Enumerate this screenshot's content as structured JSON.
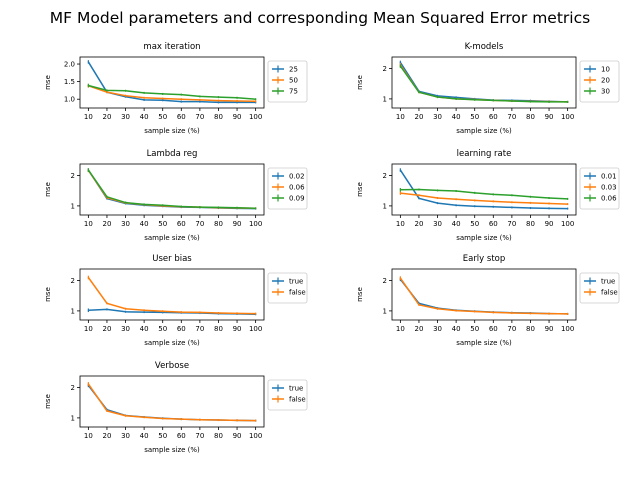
{
  "suptitle": "MF Model parameters and corresponding Mean Squared Error metrics",
  "chart_data": [
    {
      "type": "line",
      "title": "max iteration",
      "xlabel": "sample size (%)",
      "ylabel": "mse",
      "x": [
        10,
        20,
        30,
        40,
        50,
        60,
        70,
        80,
        90,
        100
      ],
      "xticks": [
        "10",
        "20",
        "30",
        "40",
        "50",
        "60",
        "70",
        "80",
        "90",
        "100"
      ],
      "yticks": [
        1.0,
        1.5,
        2.0
      ],
      "ytick_labels": [
        "1.0",
        "1.5",
        "2.0"
      ],
      "ylim": [
        0.75,
        2.2
      ],
      "legend_loc": "outside-right",
      "series": [
        {
          "name": "25",
          "color": "#1f77b4",
          "values": [
            2.06,
            1.2,
            1.07,
            0.98,
            0.97,
            0.93,
            0.93,
            0.91,
            0.91,
            0.91
          ]
        },
        {
          "name": "50",
          "color": "#ff7f0e",
          "values": [
            1.38,
            1.2,
            1.1,
            1.04,
            1.02,
            1.0,
            0.98,
            0.96,
            0.95,
            0.94
          ]
        },
        {
          "name": "75",
          "color": "#2ca02c",
          "values": [
            1.39,
            1.25,
            1.24,
            1.18,
            1.15,
            1.13,
            1.08,
            1.06,
            1.04,
            1.0
          ]
        }
      ]
    },
    {
      "type": "line",
      "title": "K-models",
      "xlabel": "sample size (%)",
      "ylabel": "mse",
      "x": [
        10,
        20,
        30,
        40,
        50,
        60,
        70,
        80,
        90,
        100
      ],
      "xticks": [
        "10",
        "20",
        "30",
        "40",
        "50",
        "60",
        "70",
        "80",
        "90",
        "100"
      ],
      "yticks": [
        1,
        2
      ],
      "ytick_labels": [
        "1",
        "2"
      ],
      "ylim": [
        0.7,
        2.38
      ],
      "legend_loc": "outside-right",
      "series": [
        {
          "name": "10",
          "color": "#1f77b4",
          "values": [
            2.2,
            1.25,
            1.1,
            1.05,
            1.0,
            0.96,
            0.95,
            0.94,
            0.92,
            0.9
          ]
        },
        {
          "name": "20",
          "color": "#ff7f0e",
          "values": [
            2.12,
            1.22,
            1.06,
            1.0,
            0.98,
            0.95,
            0.93,
            0.92,
            0.91,
            0.9
          ]
        },
        {
          "name": "30",
          "color": "#2ca02c",
          "values": [
            2.08,
            1.22,
            1.06,
            1.0,
            0.97,
            0.95,
            0.93,
            0.91,
            0.9,
            0.9
          ]
        }
      ]
    },
    {
      "type": "line",
      "title": "Lambda reg",
      "xlabel": "sample size (%)",
      "ylabel": "mse",
      "x": [
        10,
        20,
        30,
        40,
        50,
        60,
        70,
        80,
        90,
        100
      ],
      "xticks": [
        "10",
        "20",
        "30",
        "40",
        "50",
        "60",
        "70",
        "80",
        "90",
        "100"
      ],
      "yticks": [
        1,
        2
      ],
      "ytick_labels": [
        "1",
        "2"
      ],
      "ylim": [
        0.7,
        2.38
      ],
      "legend_loc": "outside-right",
      "series": [
        {
          "name": "0.02",
          "color": "#1f77b4",
          "values": [
            2.18,
            1.24,
            1.08,
            1.02,
            0.99,
            0.96,
            0.95,
            0.93,
            0.92,
            0.91
          ]
        },
        {
          "name": "0.06",
          "color": "#ff7f0e",
          "values": [
            2.17,
            1.27,
            1.1,
            1.04,
            1.0,
            0.97,
            0.96,
            0.94,
            0.93,
            0.92
          ]
        },
        {
          "name": "0.09",
          "color": "#2ca02c",
          "values": [
            2.18,
            1.3,
            1.11,
            1.05,
            1.02,
            0.98,
            0.96,
            0.95,
            0.94,
            0.92
          ]
        }
      ]
    },
    {
      "type": "line",
      "title": "learning rate",
      "xlabel": "sample size (%)",
      "ylabel": "mse",
      "x": [
        10,
        20,
        30,
        40,
        50,
        60,
        70,
        80,
        90,
        100
      ],
      "xticks": [
        "10",
        "20",
        "30",
        "40",
        "50",
        "60",
        "70",
        "80",
        "90",
        "100"
      ],
      "yticks": [
        1,
        2
      ],
      "ytick_labels": [
        "1",
        "2"
      ],
      "ylim": [
        0.7,
        2.38
      ],
      "legend_loc": "outside-right",
      "series": [
        {
          "name": "0.01",
          "color": "#1f77b4",
          "values": [
            2.18,
            1.25,
            1.09,
            1.02,
            0.99,
            0.97,
            0.95,
            0.93,
            0.92,
            0.91
          ]
        },
        {
          "name": "0.03",
          "color": "#ff7f0e",
          "values": [
            1.42,
            1.35,
            1.26,
            1.22,
            1.18,
            1.15,
            1.12,
            1.1,
            1.08,
            1.06
          ]
        },
        {
          "name": "0.06",
          "color": "#2ca02c",
          "values": [
            1.53,
            1.54,
            1.51,
            1.49,
            1.43,
            1.38,
            1.35,
            1.3,
            1.26,
            1.23
          ]
        }
      ]
    },
    {
      "type": "line",
      "title": "User bias",
      "xlabel": "sample size (%)",
      "ylabel": "mse",
      "x": [
        10,
        20,
        30,
        40,
        50,
        60,
        70,
        80,
        90,
        100
      ],
      "xticks": [
        "10",
        "20",
        "30",
        "40",
        "50",
        "60",
        "70",
        "80",
        "90",
        "100"
      ],
      "yticks": [
        1,
        2
      ],
      "ytick_labels": [
        "1",
        "2"
      ],
      "ylim": [
        0.7,
        2.38
      ],
      "legend_loc": "outside-right",
      "series": [
        {
          "name": "true",
          "color": "#1f77b4",
          "values": [
            1.02,
            1.05,
            0.97,
            0.96,
            0.95,
            0.94,
            0.93,
            0.91,
            0.9,
            0.89
          ]
        },
        {
          "name": "false",
          "color": "#ff7f0e",
          "values": [
            2.1,
            1.25,
            1.07,
            1.02,
            0.99,
            0.96,
            0.95,
            0.93,
            0.92,
            0.91
          ]
        }
      ]
    },
    {
      "type": "line",
      "title": "Early stop",
      "xlabel": "sample size (%)",
      "ylabel": "mse",
      "x": [
        10,
        20,
        30,
        40,
        50,
        60,
        70,
        80,
        90,
        100
      ],
      "xticks": [
        "10",
        "20",
        "30",
        "40",
        "50",
        "60",
        "70",
        "80",
        "90",
        "100"
      ],
      "yticks": [
        1,
        2
      ],
      "ytick_labels": [
        "1",
        "2"
      ],
      "ylim": [
        0.7,
        2.38
      ],
      "legend_loc": "outside-right",
      "series": [
        {
          "name": "true",
          "color": "#1f77b4",
          "values": [
            2.04,
            1.25,
            1.09,
            1.02,
            0.99,
            0.96,
            0.94,
            0.93,
            0.91,
            0.9
          ]
        },
        {
          "name": "false",
          "color": "#ff7f0e",
          "values": [
            2.08,
            1.2,
            1.07,
            1.01,
            0.98,
            0.95,
            0.93,
            0.92,
            0.91,
            0.9
          ]
        }
      ]
    },
    {
      "type": "line",
      "title": "Verbose",
      "xlabel": "sample size (%)",
      "ylabel": "mse",
      "x": [
        10,
        20,
        30,
        40,
        50,
        60,
        70,
        80,
        90,
        100
      ],
      "xticks": [
        "10",
        "20",
        "30",
        "40",
        "50",
        "60",
        "70",
        "80",
        "90",
        "100"
      ],
      "yticks": [
        1,
        2
      ],
      "ytick_labels": [
        "1",
        "2"
      ],
      "ylim": [
        0.7,
        2.38
      ],
      "legend_loc": "outside-right",
      "series": [
        {
          "name": "true",
          "color": "#1f77b4",
          "values": [
            2.07,
            1.27,
            1.08,
            1.03,
            0.99,
            0.96,
            0.94,
            0.93,
            0.92,
            0.91
          ]
        },
        {
          "name": "false",
          "color": "#ff7f0e",
          "values": [
            2.12,
            1.23,
            1.07,
            1.02,
            0.98,
            0.96,
            0.94,
            0.93,
            0.92,
            0.91
          ]
        }
      ]
    }
  ]
}
